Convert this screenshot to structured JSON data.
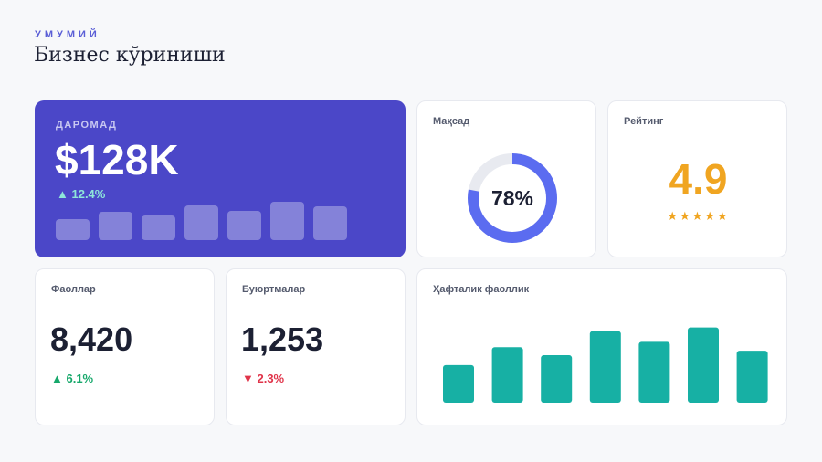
{
  "header": {
    "eyebrow": "УМУМИЙ",
    "title": "Бизнес кўриниши"
  },
  "revenue": {
    "label": "ДАРОМАД",
    "value": "$128K",
    "change": "▲ 12.4%",
    "bar_levels": [
      0.45,
      0.6,
      0.52,
      0.73,
      0.62,
      0.8,
      0.71
    ]
  },
  "goal": {
    "label": "Мақсад",
    "value_text": "78%",
    "progress": 0.78,
    "colors": {
      "fill": "#5b6cf0",
      "track": "#e8eaf0"
    }
  },
  "rating": {
    "label": "Рейтинг",
    "value": "4.9",
    "stars": "★★★★★"
  },
  "active": {
    "label": "Фаоллар",
    "value": "8,420",
    "change": "▲ 6.1%"
  },
  "orders": {
    "label": "Буюртмалар",
    "value": "1,253",
    "change": "▼ 2.3%"
  },
  "weekly": {
    "label": "Ҳафталик фаоллик",
    "bar_levels": [
      0.42,
      0.62,
      0.53,
      0.8,
      0.68,
      0.84,
      0.58
    ],
    "bar_color": "#17b0a4"
  },
  "colors": {
    "accent": "#4b47c8",
    "positive": "#17a86b",
    "negative": "#e0344a",
    "rating": "#f0a521"
  }
}
